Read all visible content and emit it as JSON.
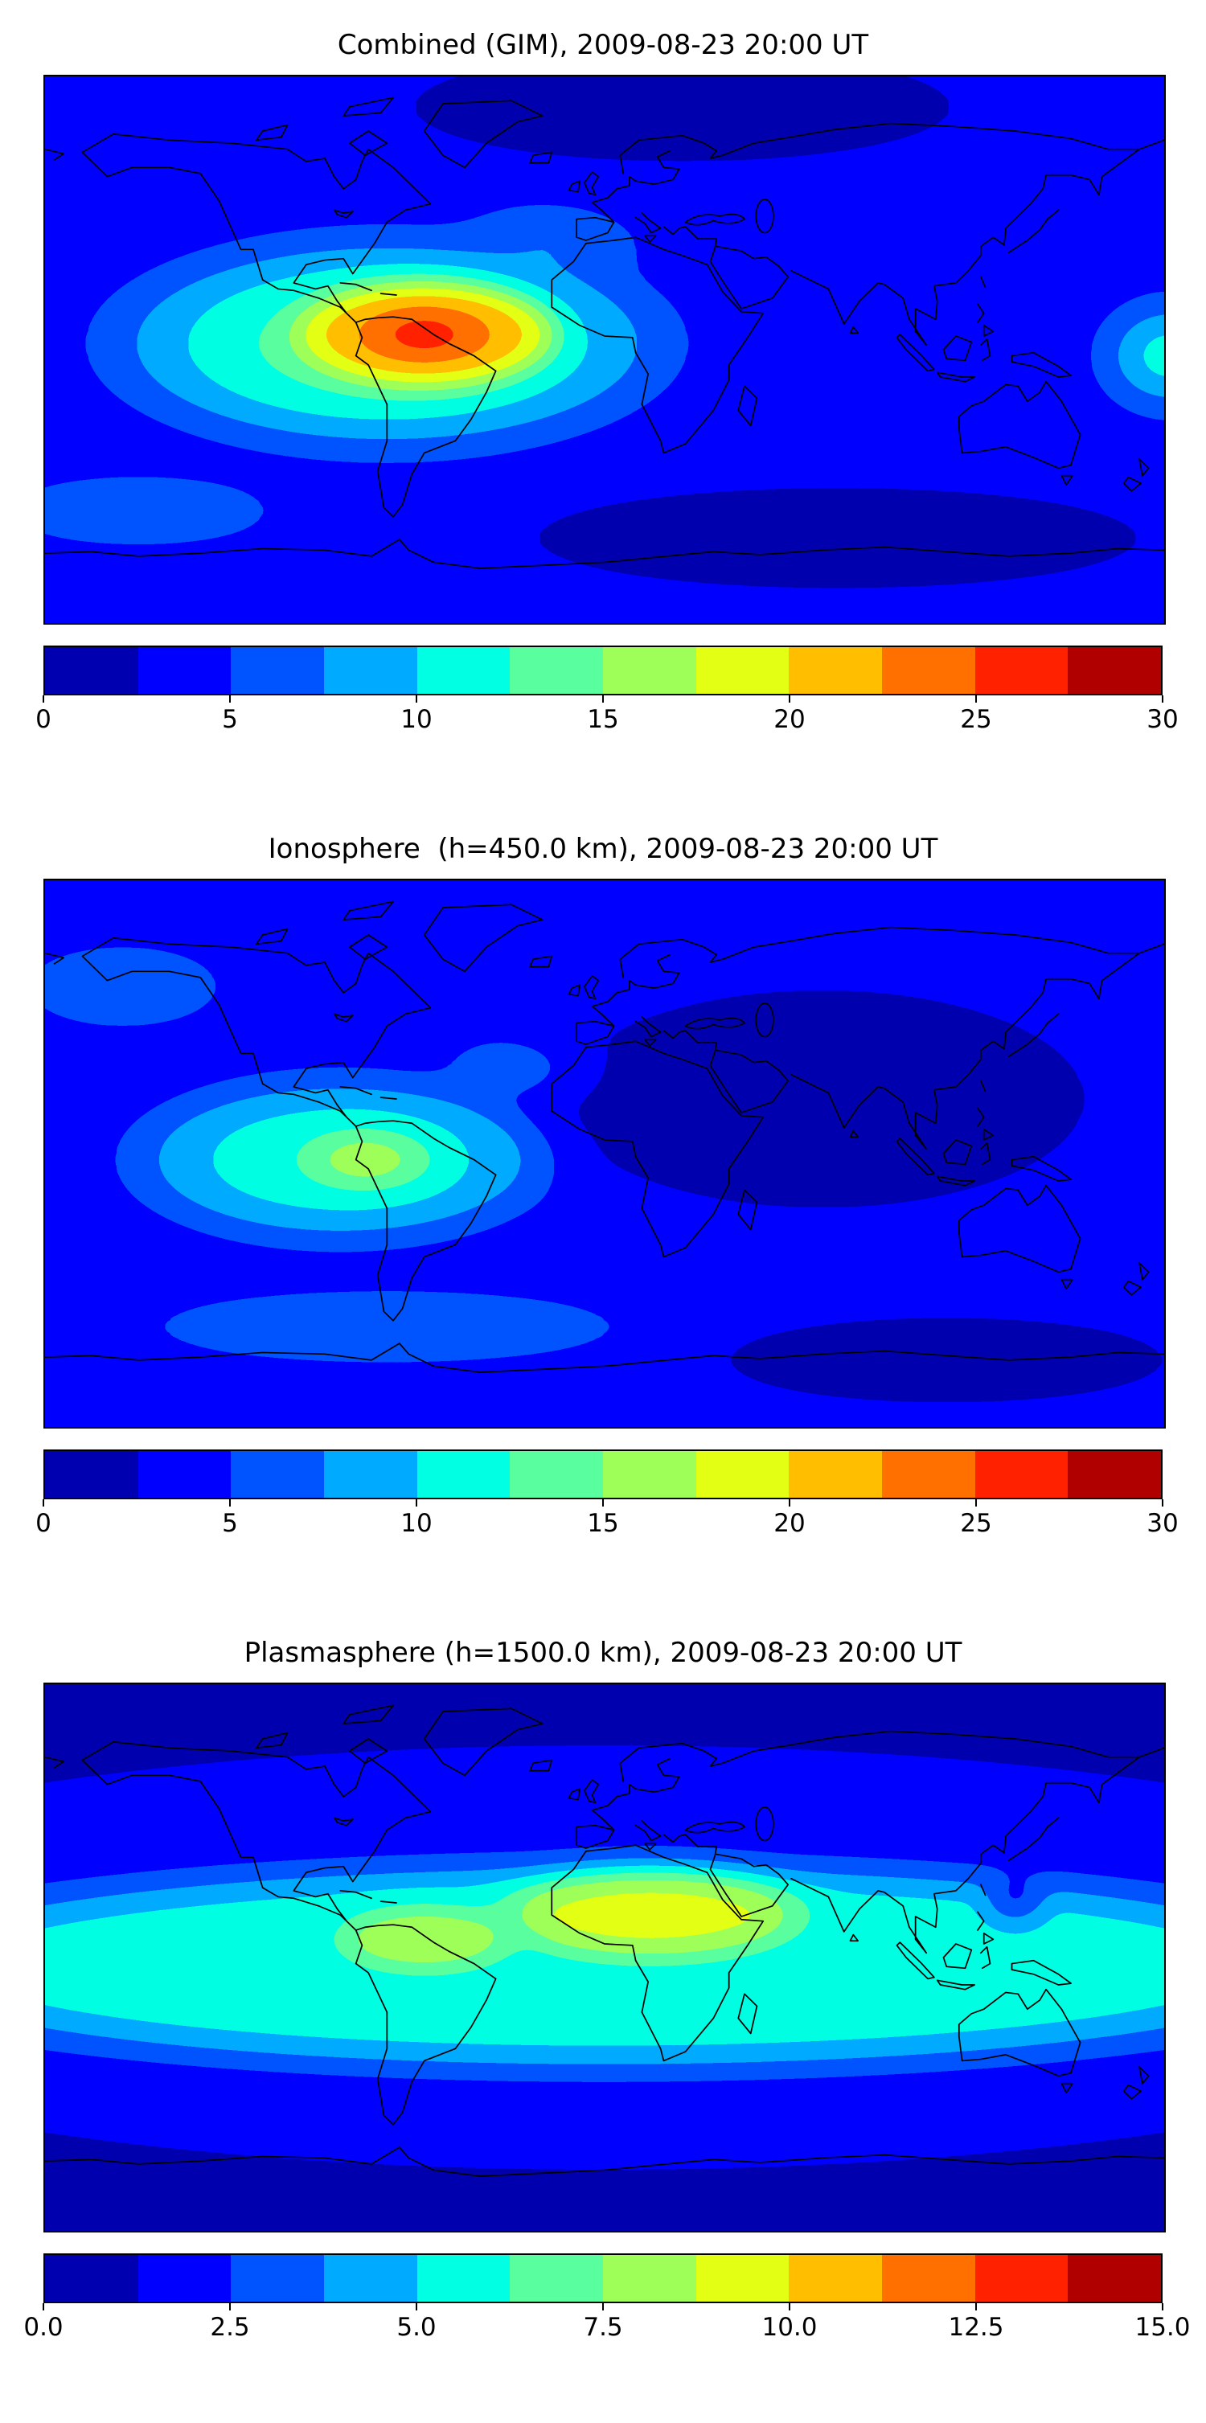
{
  "figure": {
    "panels": [
      {
        "title": "Combined (GIM), 2009-08-23 20:00 UT",
        "colorbar": {
          "tick_labels": [
            "0",
            "5",
            "10",
            "15",
            "20",
            "25",
            "30"
          ],
          "colors": [
            "#0000B0",
            "#0000FF",
            "#0054FF",
            "#00ABFF",
            "#00FFE3",
            "#59FF9E",
            "#9EFF59",
            "#E3FF14",
            "#FFBF00",
            "#FF7000",
            "#FF2100",
            "#B00000"
          ]
        }
      },
      {
        "title": "Ionosphere  (h=450.0 km), 2009-08-23 20:00 UT",
        "colorbar": {
          "tick_labels": [
            "0",
            "5",
            "10",
            "15",
            "20",
            "25",
            "30"
          ],
          "colors": [
            "#0000B0",
            "#0000FF",
            "#0054FF",
            "#00ABFF",
            "#00FFE3",
            "#59FF9E",
            "#9EFF59",
            "#E3FF14",
            "#FFBF00",
            "#FF7000",
            "#FF2100",
            "#B00000"
          ]
        }
      },
      {
        "title": "Plasmasphere (h=1500.0 km), 2009-08-23 20:00 UT",
        "colorbar": {
          "tick_labels": [
            "0.0",
            "2.5",
            "5.0",
            "7.5",
            "10.0",
            "12.5",
            "15.0"
          ],
          "colors": [
            "#0000B0",
            "#0000FF",
            "#0054FF",
            "#00ABFF",
            "#00FFE3",
            "#59FF9E",
            "#9EFF59",
            "#E3FF14",
            "#FFBF00",
            "#FF7000",
            "#FF2100",
            "#B00000"
          ]
        }
      }
    ]
  },
  "chart_data": [
    {
      "type": "heatmap",
      "subtype": "filled-contour world map",
      "title": "Combined (GIM), 2009-08-23 20:00 UT",
      "layer": "Combined (GIM)",
      "time": "2009-08-23 20:00 UT",
      "projection": "equirectangular",
      "lon_range": [
        -180,
        180
      ],
      "lat_range": [
        -90,
        90
      ],
      "colormap": "jet",
      "n_levels": 12,
      "value_range": [
        0,
        30
      ],
      "colorbar_ticks": [
        0,
        5,
        10,
        15,
        20,
        25,
        30
      ],
      "features": [
        {
          "region": "equatorial anomaly peak over northern South America",
          "lon": -65,
          "lat": 4,
          "value": 28
        },
        {
          "region": "broad daytime enhancement over eastern Pacific / Atlantic equator",
          "lon": -100,
          "lat": 5,
          "value": 15
        },
        {
          "region": "global background",
          "value": 5
        },
        {
          "region": "Arctic minimum",
          "lon": 25,
          "lat": 78,
          "value": 2
        },
        {
          "region": "southern high-latitude minimum",
          "lon": 75,
          "lat": -62,
          "value": 2
        },
        {
          "region": "western Pacific equatorial enhancement at map edge",
          "lon": 178,
          "lat": 2,
          "value": 11
        }
      ]
    },
    {
      "type": "heatmap",
      "subtype": "filled-contour world map",
      "title": "Ionosphere  (h=450.0 km), 2009-08-23 20:00 UT",
      "layer": "Ionosphere",
      "height_km": 450.0,
      "time": "2009-08-23 20:00 UT",
      "projection": "equirectangular",
      "lon_range": [
        -180,
        180
      ],
      "lat_range": [
        -90,
        90
      ],
      "colormap": "jet",
      "n_levels": 12,
      "value_range": [
        0,
        30
      ],
      "colorbar_ticks": [
        0,
        5,
        10,
        15,
        20,
        25,
        30
      ],
      "features": [
        {
          "region": "peak west of Peru/Ecuador",
          "lon": -78,
          "lat": -2,
          "value": 17
        },
        {
          "region": "cyan enhancement over eastern Pacific",
          "lon": -90,
          "lat": -2,
          "value": 11
        },
        {
          "region": "global background",
          "value": 4
        },
        {
          "region": "nightside minimum over Africa and Asia",
          "lon": 70,
          "lat": 15,
          "value": 1.5
        },
        {
          "region": "southern high-latitude minimum",
          "lon": 110,
          "lat": -65,
          "value": 2
        }
      ]
    },
    {
      "type": "heatmap",
      "subtype": "filled-contour world map",
      "title": "Plasmasphere (h=1500.0 km), 2009-08-23 20:00 UT",
      "layer": "Plasmasphere",
      "height_km": 1500.0,
      "time": "2009-08-23 20:00 UT",
      "projection": "equirectangular",
      "lon_range": [
        -180,
        180
      ],
      "lat_range": [
        -90,
        90
      ],
      "colormap": "jet",
      "n_levels": 12,
      "value_range": [
        0,
        15
      ],
      "colorbar_ticks": [
        0.0,
        2.5,
        5.0,
        7.5,
        10.0,
        12.5,
        15.0
      ],
      "features": [
        {
          "region": "equatorial belt (all longitudes)",
          "lat": 0,
          "value": 5.5
        },
        {
          "region": "yellow-green maximum over Africa / Sahara",
          "lon": 10,
          "lat": 13,
          "value": 9.5
        },
        {
          "region": "yellow-green maximum over Caribbean / South America",
          "lon": -58,
          "lat": 6,
          "value": 9
        },
        {
          "region": "mid-latitude blue band",
          "lat": 48,
          "value": 3
        },
        {
          "region": "polar minima",
          "lat": 75,
          "value": 1
        },
        {
          "region": "small depletion east of Philippines",
          "lon": 132,
          "lat": 19,
          "value": 4
        }
      ]
    }
  ]
}
